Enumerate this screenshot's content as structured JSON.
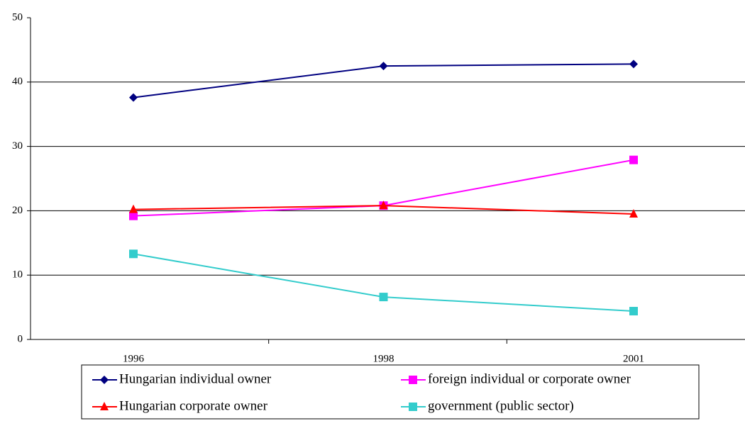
{
  "chart_data": {
    "type": "line",
    "categories": [
      "1996",
      "1998",
      "2001"
    ],
    "series": [
      {
        "name": "Hungarian individual owner",
        "color": "#000080",
        "marker": "diamond",
        "values": [
          37.6,
          42.5,
          42.8
        ]
      },
      {
        "name": "foreign individual or corporate owner",
        "color": "#ff00ff",
        "marker": "square",
        "values": [
          19.2,
          20.8,
          27.9
        ]
      },
      {
        "name": "Hungarian corporate owner",
        "color": "#ff0000",
        "marker": "triangle",
        "values": [
          20.2,
          20.8,
          19.5
        ]
      },
      {
        "name": "government (public sector)",
        "color": "#33cccc",
        "marker": "square",
        "values": [
          13.3,
          6.6,
          4.4
        ]
      }
    ],
    "ylim": [
      0,
      50
    ],
    "yticks": [
      0,
      10,
      20,
      30,
      40,
      50
    ],
    "grid": true
  }
}
